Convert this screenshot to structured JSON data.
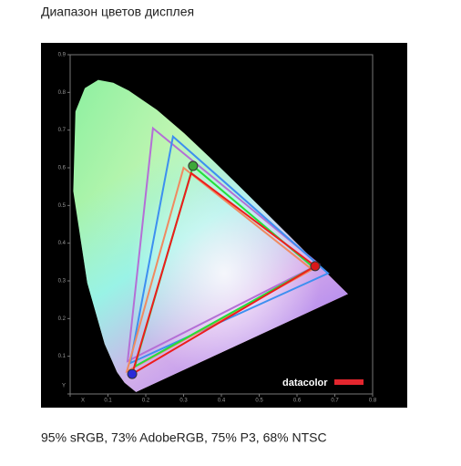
{
  "chart_data": {
    "type": "gamut",
    "title": "Диапазон цветов дисплея",
    "caption": "95% sRGB, 73% AdobeRGB, 75% P3, 68% NTSC",
    "logo": "datacolor",
    "xlim": [
      0,
      0.8
    ],
    "ylim": [
      0,
      0.9
    ],
    "xticks": [
      {
        "value": 0,
        "label": "X"
      },
      0.1,
      0.2,
      0.3,
      0.4,
      0.5,
      0.6,
      0.7,
      0.8
    ],
    "yticks": [
      {
        "value": 0,
        "label": "Y"
      },
      0.1,
      0.2,
      0.3,
      0.4,
      0.5,
      0.6,
      0.7,
      0.8,
      0.9
    ],
    "series": [
      {
        "color": "#b46fd6",
        "x": [
          0.219,
          0.658,
          0.152
        ],
        "y": [
          0.705,
          0.344,
          0.087
        ]
      },
      {
        "color": "#3d8ff0",
        "x": [
          0.272,
          0.682,
          0.159
        ],
        "y": [
          0.683,
          0.32,
          0.082
        ]
      },
      {
        "color": "#f08a60",
        "x": [
          0.3,
          0.64,
          0.15
        ],
        "y": [
          0.6,
          0.33,
          0.06
        ]
      },
      {
        "color": "#22e03a",
        "x": [
          0.325,
          0.643,
          0.171
        ],
        "y": [
          0.605,
          0.336,
          0.073
        ]
      },
      {
        "color": "#ee1c1c",
        "x": [
          0.32,
          0.648,
          0.164
        ],
        "y": [
          0.586,
          0.339,
          0.053
        ]
      }
    ],
    "markers": {
      "x": [
        0.325,
        0.648,
        0.164
      ],
      "y": [
        0.605,
        0.339,
        0.053
      ],
      "colors": [
        "#3ea83a",
        "#d81818",
        "#2a2ad8"
      ]
    }
  }
}
